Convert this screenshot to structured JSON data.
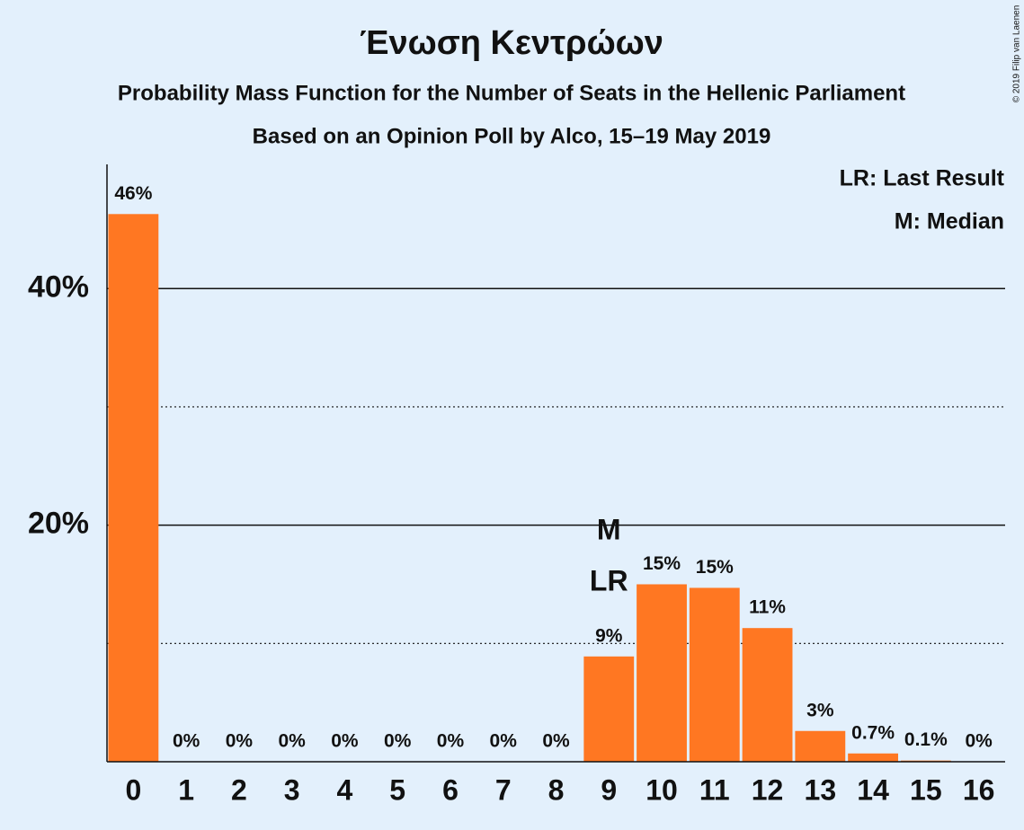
{
  "chart_data": {
    "type": "bar",
    "title": "Ένωση Κεντρώων",
    "subtitle": "Probability Mass Function for the Number of Seats in the Hellenic Parliament",
    "subtitle2": "Based on an Opinion Poll by Alco, 15–19 May 2019",
    "legend": [
      "LR: Last Result",
      "M: Median"
    ],
    "copyright": "© 2019 Filip van Laenen",
    "categories": [
      "0",
      "1",
      "2",
      "3",
      "4",
      "5",
      "6",
      "7",
      "8",
      "9",
      "10",
      "11",
      "12",
      "13",
      "14",
      "15",
      "16"
    ],
    "values": [
      46.3,
      0,
      0,
      0,
      0,
      0,
      0,
      0,
      0,
      8.9,
      15.0,
      14.7,
      11.3,
      2.6,
      0.7,
      0.1,
      0
    ],
    "value_labels": [
      "46%",
      "0%",
      "0%",
      "0%",
      "0%",
      "0%",
      "0%",
      "0%",
      "0%",
      "9%",
      "15%",
      "15%",
      "11%",
      "3%",
      "0.7%",
      "0.1%",
      "0%"
    ],
    "color": "#ff7722",
    "ylim": [
      0,
      50.5
    ],
    "yticks": [
      {
        "value": 20,
        "label": "20%"
      },
      {
        "value": 40,
        "label": "40%"
      }
    ],
    "minor_gridlines": [
      10,
      30
    ],
    "grid": true,
    "annotations": [
      {
        "text": "LR",
        "category": "9"
      },
      {
        "text": "M",
        "category": "9"
      }
    ]
  }
}
